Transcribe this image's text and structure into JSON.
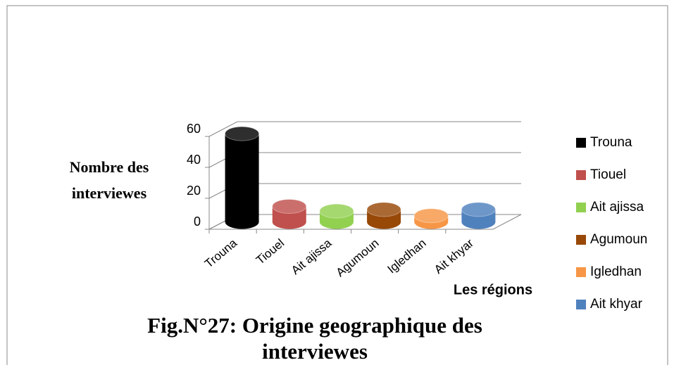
{
  "chart_data": {
    "type": "bar3d",
    "title": [
      "Fig.N°27: Origine geographique des",
      "interviewes"
    ],
    "y_label": [
      "Nombre des",
      "interviewes"
    ],
    "x_label": "Les  régions",
    "categories": [
      "Trouna",
      "Tiouel",
      "Ait ajissa",
      "Agumoun",
      "Igledhan",
      "Ait khyar"
    ],
    "values": [
      57,
      10,
      7,
      8,
      4,
      8
    ],
    "colors": [
      "#000000",
      "#c0504d",
      "#92d050",
      "#984807",
      "#f79646",
      "#4f81bd"
    ],
    "ylim": [
      0,
      60
    ],
    "yticks": [
      0,
      20,
      40,
      60
    ],
    "grid": true,
    "legend": "right"
  }
}
